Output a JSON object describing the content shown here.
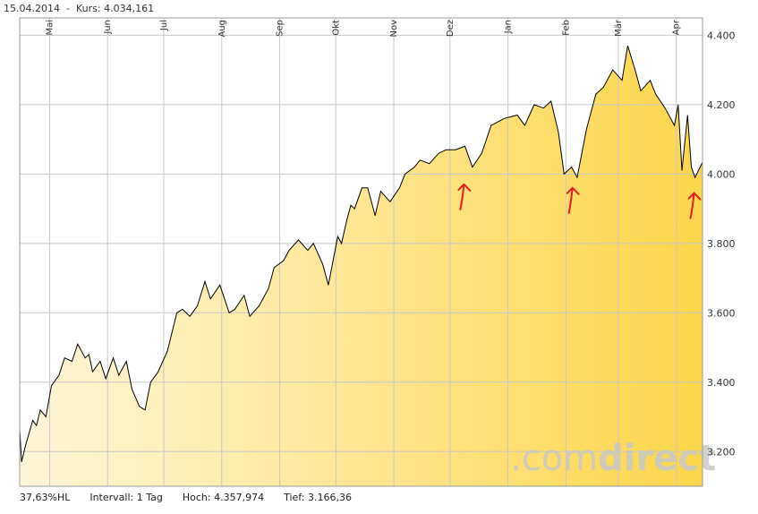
{
  "header": {
    "date": "15.04.2014",
    "separator": "-",
    "kurs_label": "Kurs:",
    "kurs_value": "4.034,161"
  },
  "footer": {
    "hl": "37,63%HL",
    "intervall": "Intervall: 1 Tag",
    "hoch": "Hoch: 4.357,974",
    "tief": "Tief: 3.166,36"
  },
  "brand": {
    "light": ".com",
    "bold": "direct"
  },
  "colors": {
    "fill_start": "#fff6d9",
    "fill_end": "#fdd64a",
    "line": "#000000",
    "grid": "#c8c8c8",
    "arrow": "#e02020"
  },
  "chart_data": {
    "type": "area",
    "title": "",
    "xlabel": "",
    "ylabel": "",
    "ylim": [
      3100,
      4450
    ],
    "yticks": [
      3200,
      3400,
      3600,
      3800,
      4000,
      4200,
      4400
    ],
    "ytick_labels": [
      "3.200",
      "3.400",
      "3.600",
      "3.800",
      "4.000",
      "4.200",
      "4.400"
    ],
    "xlim": [
      "2013-04-15",
      "2014-04-15"
    ],
    "x_month_ticks": [
      "2013-05-01",
      "2013-06-01",
      "2013-07-01",
      "2013-08-01",
      "2013-09-01",
      "2013-10-01",
      "2013-11-01",
      "2013-12-01",
      "2014-01-01",
      "2014-02-01",
      "2014-03-01",
      "2014-04-01"
    ],
    "x_month_labels": [
      "Mai",
      "Jun",
      "Jul",
      "Aug",
      "Sep",
      "Okt",
      "Nov",
      "Dez",
      "Jan",
      "Feb",
      "Mär",
      "Apr"
    ],
    "grid": true,
    "series": [
      {
        "x": [
          "2013-04-15",
          "2013-04-16",
          "2013-04-18",
          "2013-04-22",
          "2013-04-24",
          "2013-04-26",
          "2013-04-29",
          "2013-05-02",
          "2013-05-06",
          "2013-05-09",
          "2013-05-13",
          "2013-05-16",
          "2013-05-20",
          "2013-05-22",
          "2013-05-24",
          "2013-05-28",
          "2013-05-31",
          "2013-06-04",
          "2013-06-07",
          "2013-06-11",
          "2013-06-14",
          "2013-06-18",
          "2013-06-21",
          "2013-06-24",
          "2013-06-28",
          "2013-07-03",
          "2013-07-08",
          "2013-07-11",
          "2013-07-15",
          "2013-07-19",
          "2013-07-23",
          "2013-07-26",
          "2013-07-31",
          "2013-08-05",
          "2013-08-08",
          "2013-08-13",
          "2013-08-16",
          "2013-08-21",
          "2013-08-26",
          "2013-08-29",
          "2013-09-03",
          "2013-09-06",
          "2013-09-11",
          "2013-09-16",
          "2013-09-19",
          "2013-09-24",
          "2013-09-27",
          "2013-10-02",
          "2013-10-04",
          "2013-10-07",
          "2013-10-09",
          "2013-10-11",
          "2013-10-15",
          "2013-10-18",
          "2013-10-22",
          "2013-10-25",
          "2013-10-30",
          "2013-11-04",
          "2013-11-07",
          "2013-11-12",
          "2013-11-15",
          "2013-11-20",
          "2013-11-25",
          "2013-11-29",
          "2013-12-04",
          "2013-12-09",
          "2013-12-13",
          "2013-12-18",
          "2013-12-23",
          "2013-12-30",
          "2014-01-06",
          "2014-01-10",
          "2014-01-15",
          "2014-01-20",
          "2014-01-24",
          "2014-01-28",
          "2014-01-31",
          "2014-02-04",
          "2014-02-07",
          "2014-02-12",
          "2014-02-17",
          "2014-02-21",
          "2014-02-26",
          "2014-03-03",
          "2014-03-06",
          "2014-03-10",
          "2014-03-13",
          "2014-03-18",
          "2014-03-21",
          "2014-03-26",
          "2014-03-31",
          "2014-04-02",
          "2014-04-04",
          "2014-04-07",
          "2014-04-09",
          "2014-04-11",
          "2014-04-15"
        ],
        "y": [
          3265,
          3170,
          3215,
          3290,
          3275,
          3320,
          3300,
          3390,
          3420,
          3470,
          3460,
          3510,
          3470,
          3480,
          3430,
          3460,
          3410,
          3470,
          3420,
          3460,
          3380,
          3330,
          3320,
          3400,
          3430,
          3490,
          3600,
          3610,
          3590,
          3620,
          3690,
          3640,
          3680,
          3600,
          3610,
          3650,
          3590,
          3620,
          3670,
          3730,
          3750,
          3780,
          3810,
          3780,
          3800,
          3740,
          3680,
          3820,
          3800,
          3870,
          3910,
          3900,
          3960,
          3960,
          3880,
          3950,
          3920,
          3960,
          4000,
          4020,
          4040,
          4030,
          4060,
          4070,
          4070,
          4080,
          4020,
          4060,
          4140,
          4160,
          4170,
          4140,
          4200,
          4190,
          4210,
          4120,
          4000,
          4020,
          3990,
          4130,
          4230,
          4250,
          4300,
          4270,
          4370,
          4300,
          4240,
          4270,
          4230,
          4190,
          4140,
          4200,
          4010,
          4170,
          4020,
          3990,
          4034
        ]
      }
    ],
    "annotations": [
      {
        "type": "arrow-up",
        "x": "2013-12-08",
        "y": 3970
      },
      {
        "type": "arrow-up",
        "x": "2014-02-04",
        "y": 3960
      },
      {
        "type": "arrow-up",
        "x": "2014-04-10",
        "y": 3945
      }
    ]
  }
}
